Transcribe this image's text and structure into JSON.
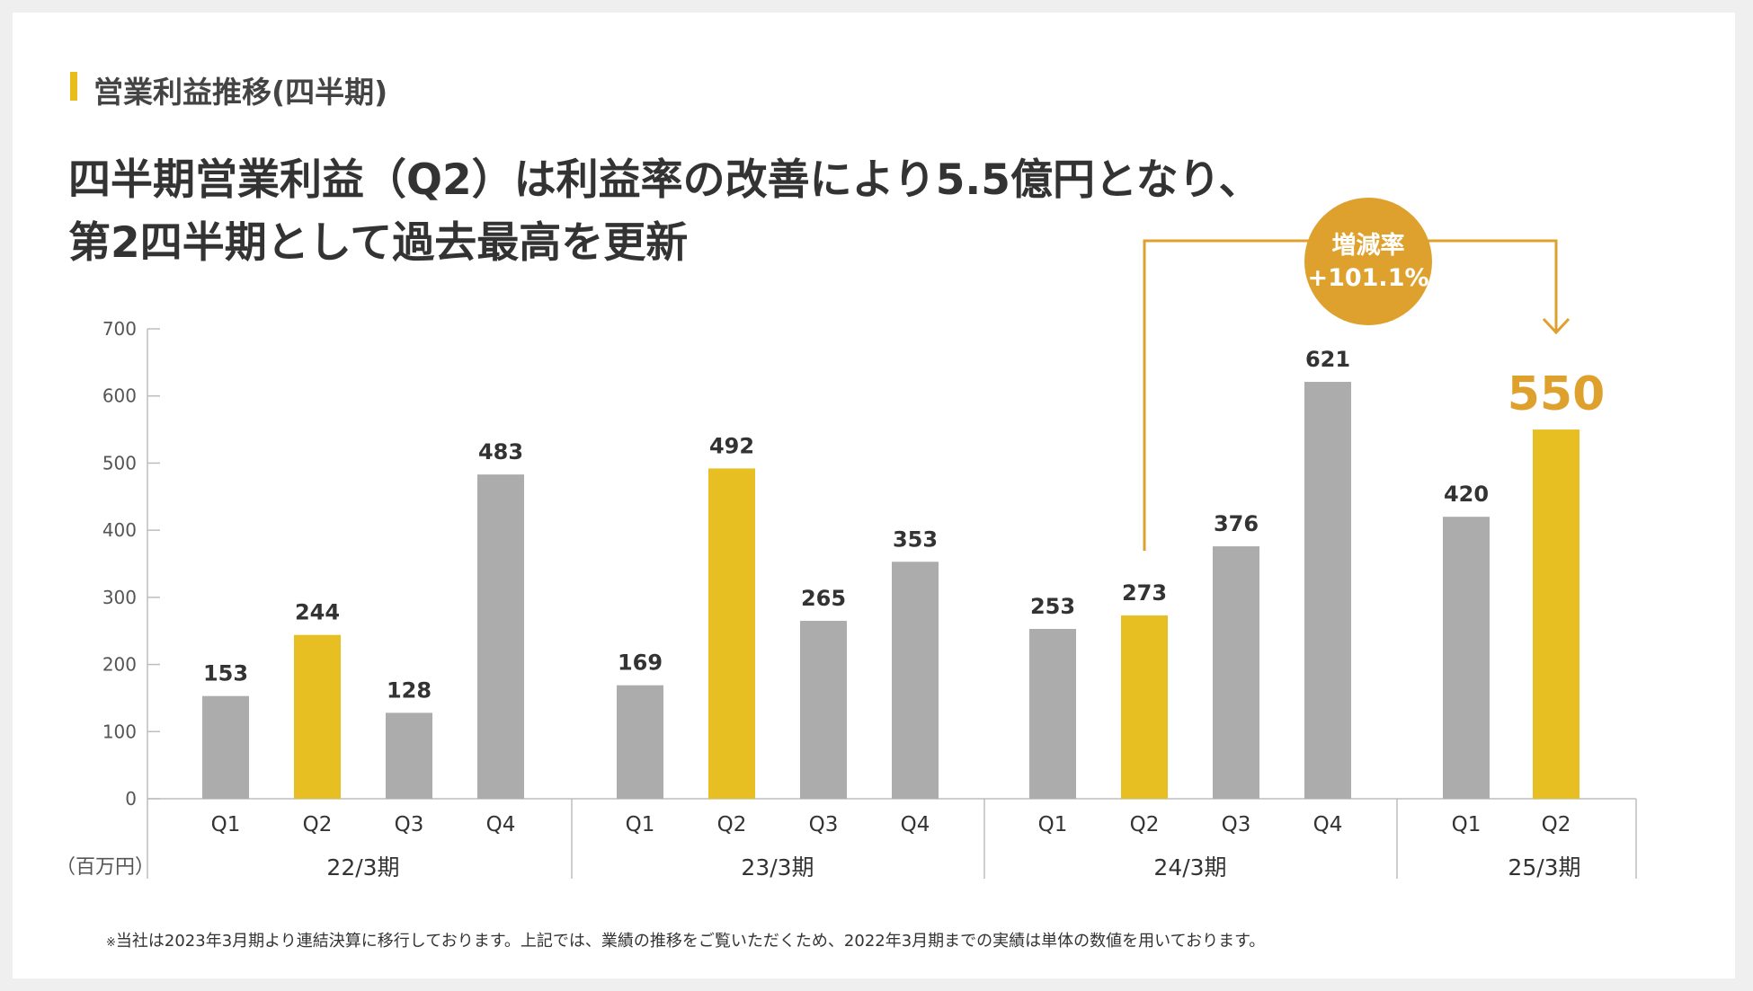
{
  "section": {
    "title": "営業利益推移(四半期)"
  },
  "headline": {
    "line1": "四半期営業利益（Q2）は利益率の改善により5.5億円となり、",
    "line2": "第2四半期として過去最高を更新"
  },
  "colors": {
    "gray_bar": "#acacac",
    "highlight_bar": "#e8bf22",
    "accent": "#dfa12d",
    "big_value": "#dfa12d",
    "axis": "#bdbdbd"
  },
  "chart_data": {
    "type": "bar",
    "title": "営業利益推移(四半期)",
    "unit_label": "（百万円）",
    "ylim": [
      0,
      700
    ],
    "yticks": [
      "0",
      "100",
      "200",
      "300",
      "400",
      "500",
      "600",
      "700"
    ],
    "groups": [
      {
        "label": "22/3期",
        "bars": [
          {
            "category": "Q1",
            "value": 153,
            "label": "153",
            "highlight": false
          },
          {
            "category": "Q2",
            "value": 244,
            "label": "244",
            "highlight": true
          },
          {
            "category": "Q3",
            "value": 128,
            "label": "128",
            "highlight": false
          },
          {
            "category": "Q4",
            "value": 483,
            "label": "483",
            "highlight": false
          }
        ]
      },
      {
        "label": "23/3期",
        "bars": [
          {
            "category": "Q1",
            "value": 169,
            "label": "169",
            "highlight": false
          },
          {
            "category": "Q2",
            "value": 492,
            "label": "492",
            "highlight": true
          },
          {
            "category": "Q3",
            "value": 265,
            "label": "265",
            "highlight": false
          },
          {
            "category": "Q4",
            "value": 353,
            "label": "353",
            "highlight": false
          }
        ]
      },
      {
        "label": "24/3期",
        "bars": [
          {
            "category": "Q1",
            "value": 253,
            "label": "253",
            "highlight": false
          },
          {
            "category": "Q2",
            "value": 273,
            "label": "273",
            "highlight": true
          },
          {
            "category": "Q3",
            "value": 376,
            "label": "376",
            "highlight": false
          },
          {
            "category": "Q4",
            "value": 621,
            "label": "621",
            "highlight": false
          }
        ]
      },
      {
        "label": "25/3期",
        "bars": [
          {
            "category": "Q1",
            "value": 420,
            "label": "420",
            "highlight": false
          },
          {
            "category": "Q2",
            "value": 550,
            "label": "550",
            "highlight": true,
            "emphasis": true
          }
        ]
      }
    ],
    "annotation": {
      "title": "増減率",
      "value": "+101.1%",
      "from": "24/3期 Q2",
      "to": "25/3期 Q2"
    }
  },
  "footnote": {
    "mark": "※",
    "text": "当社は2023年3月期より連結決算に移行しております。上記では、業績の推移をご覧いただくため、2022年3月期までの実績は単体の数値を用いております。"
  }
}
